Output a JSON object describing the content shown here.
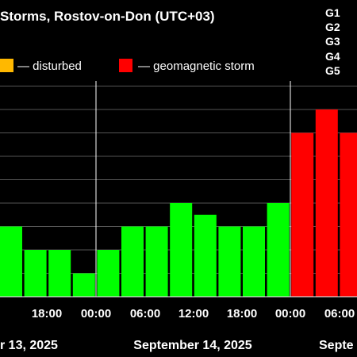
{
  "chart_data": {
    "type": "bar",
    "title": "Storms, Rostov-on-Don (UTC+03)",
    "legend": [
      {
        "label": "— disturbed",
        "color": "#FFB800"
      },
      {
        "label": "— geomagnetic storm",
        "color": "#FF0000"
      }
    ],
    "g_scale_labels": [
      "G1",
      "G2",
      "G3",
      "G4",
      "G5"
    ],
    "x_tick_labels": [
      "18:00",
      "00:00",
      "06:00",
      "12:00",
      "18:00",
      "00:00",
      "06:00"
    ],
    "date_labels": [
      "r 13, 2025",
      "September 14, 2025",
      "Septe"
    ],
    "bar_values": [
      3,
      2,
      2,
      1,
      2,
      3,
      3,
      4,
      3.5,
      3,
      3,
      4,
      7,
      8,
      7
    ],
    "bar_colors": [
      "#00FF00",
      "#00FF00",
      "#00FF00",
      "#00FF00",
      "#00FF00",
      "#00FF00",
      "#00FF00",
      "#00FF00",
      "#00FF00",
      "#00FF00",
      "#00FF00",
      "#00FF00",
      "#FF0000",
      "#FF0000",
      "#FF0000"
    ],
    "ylim": [
      0,
      9
    ],
    "grid": true,
    "colors": {
      "quiet": "#00FF00",
      "disturbed": "#FFB800",
      "storm": "#FF0000",
      "grid": "#555555",
      "background": "#000000"
    }
  }
}
